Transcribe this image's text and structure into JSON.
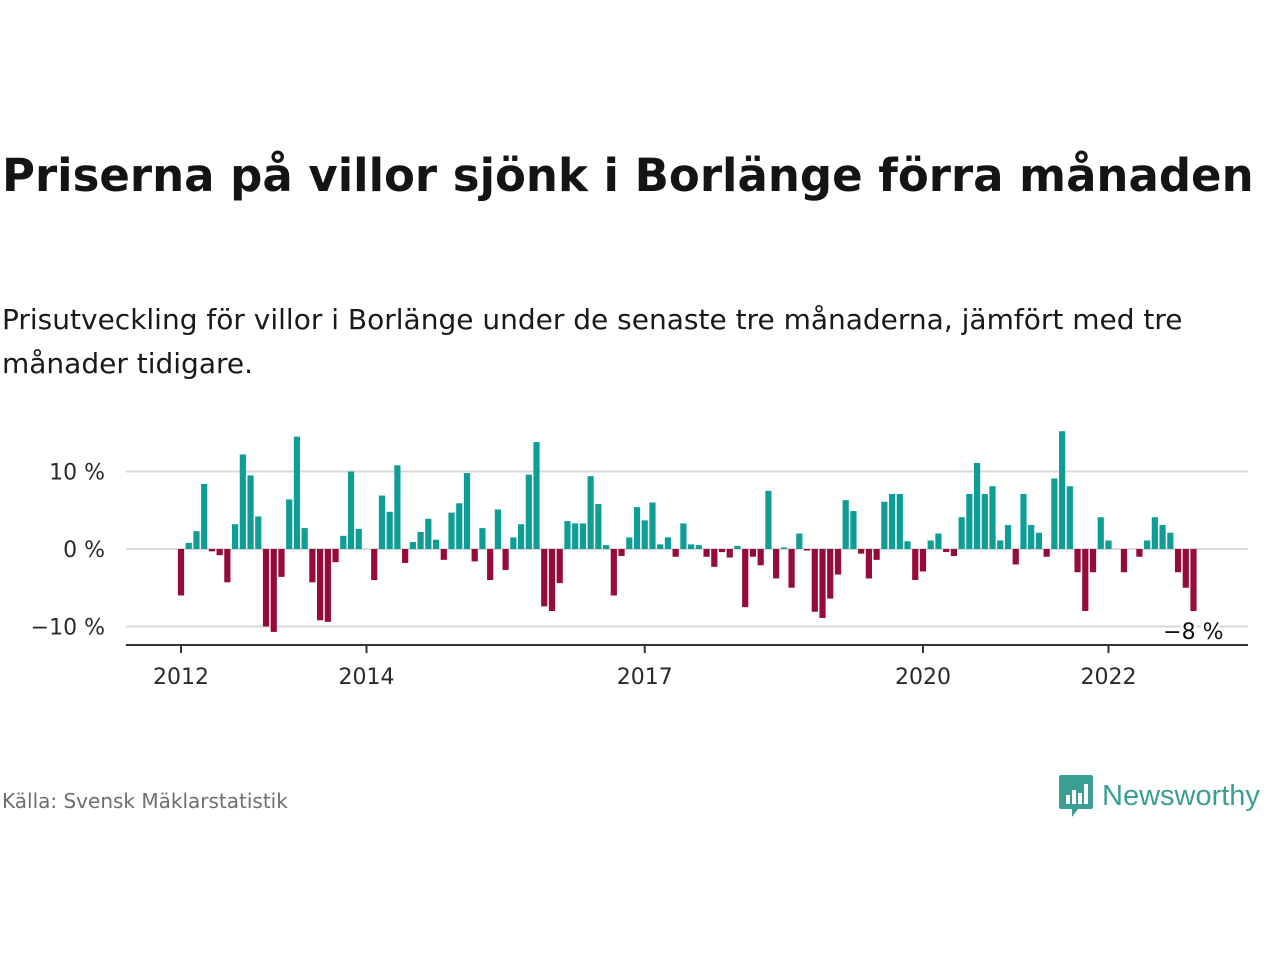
{
  "title": "Priserna på villor sjönk i Borlänge förra månaden",
  "subtitle": "Prisutveckling för villor i Borlänge under de senaste tre månaderna, jämfört med tre månader tidigare.",
  "source": "Källa: Svensk Mäklarstatistik",
  "brand": "Newsworthy",
  "colors": {
    "positive": "#0f9e97",
    "negative": "#970b3b",
    "brand": "#3a9e93"
  },
  "chart_data": {
    "type": "bar",
    "title": "",
    "xlabel": "",
    "ylabel": "",
    "ylim": [
      -12,
      16
    ],
    "yticks": [
      {
        "value": 10,
        "label": "10 %"
      },
      {
        "value": 0,
        "label": "0 %"
      },
      {
        "value": -10,
        "label": "−10 %"
      }
    ],
    "xticks": [
      {
        "index": 0,
        "label": "2012"
      },
      {
        "index": 24,
        "label": "2014"
      },
      {
        "index": 60,
        "label": "2017"
      },
      {
        "index": 96,
        "label": "2020"
      },
      {
        "index": 120,
        "label": "2022"
      }
    ],
    "end_label": "−8 %",
    "grid": true,
    "values": [
      -6,
      0.8,
      2.3,
      8.4,
      -0.3,
      -0.8,
      -4.3,
      3.2,
      12.2,
      9.5,
      4.2,
      -10,
      -10.7,
      -3.6,
      6.4,
      14.5,
      2.7,
      -4.3,
      -9.2,
      -9.4,
      -1.7,
      1.7,
      10,
      2.6,
      0,
      -4,
      6.9,
      4.8,
      10.8,
      -1.8,
      0.9,
      2.2,
      3.9,
      1.2,
      -1.4,
      4.7,
      5.9,
      9.8,
      -1.6,
      2.7,
      -4,
      5.1,
      -2.7,
      1.5,
      3.2,
      9.6,
      13.8,
      -7.4,
      -8,
      -4.4,
      3.6,
      3.3,
      3.3,
      9.4,
      5.8,
      0.5,
      -6,
      -0.9,
      1.5,
      5.4,
      3.7,
      6,
      0.6,
      1.5,
      -1,
      3.3,
      0.6,
      0.5,
      -1,
      -2.3,
      -0.4,
      -1.1,
      0.4,
      -7.5,
      -1,
      -2.1,
      7.5,
      -3.8,
      0.2,
      -5,
      2,
      -0.2,
      -8.1,
      -8.9,
      -6.4,
      -3.3,
      6.3,
      4.9,
      -0.6,
      -3.8,
      -1.4,
      6.1,
      7.1,
      7.1,
      1,
      -4,
      -2.9,
      1.1,
      2,
      -0.4,
      -0.9,
      4.1,
      7.1,
      11.1,
      7.1,
      8.1,
      1.1,
      3.1,
      -2,
      7.1,
      3.1,
      2.1,
      -1,
      9.1,
      15.2,
      8.1,
      -3,
      -8,
      -3,
      4.1,
      1.1,
      0,
      -3,
      0,
      -1,
      1.1,
      4.1,
      3.1,
      2.1,
      -3,
      -5,
      -8
    ]
  }
}
